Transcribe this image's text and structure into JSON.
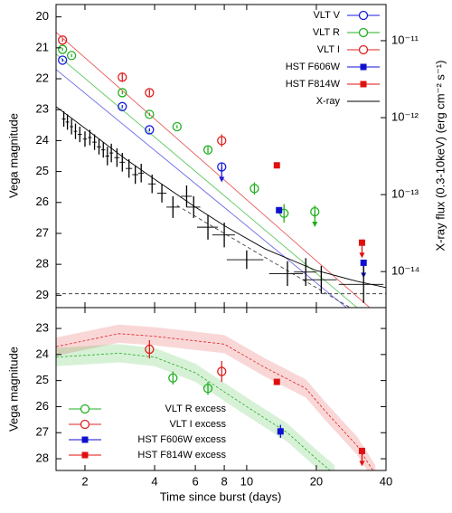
{
  "chart_data": [
    {
      "type": "scatter",
      "ylabel": "Vega magnitude",
      "y2label": "X-ray flux (0.3-10keV) (erg cm⁻² s⁻¹)",
      "xscale": "log",
      "xlim": [
        1.5,
        40
      ],
      "xticks": [
        2,
        4,
        6,
        8,
        10,
        20,
        40
      ],
      "ylim": [
        19.6,
        29.4
      ],
      "y_inverted": true,
      "yticks": [
        20,
        21,
        22,
        23,
        24,
        25,
        26,
        27,
        28,
        29
      ],
      "y2scale": "log",
      "y2lim": [
        3.4e-15,
        2.95e-11
      ],
      "y2ticks": [
        {
          "value": 1e-11,
          "label": "10⁻¹¹"
        },
        {
          "value": 1e-12,
          "label": "10⁻¹²"
        },
        {
          "value": 1e-13,
          "label": "10⁻¹³"
        },
        {
          "value": 1e-14,
          "label": "10⁻¹⁴"
        }
      ],
      "legend": "upper right",
      "series": [
        {
          "name": "VLT V",
          "color": "#1a1ae0",
          "marker": "open-circle",
          "x": [
            1.6,
            2.9,
            3.8,
            7.8
          ],
          "values": [
            21.4,
            22.9,
            23.65,
            24.85
          ],
          "yerr": [
            0.05,
            0.05,
            0.05,
            0.12
          ],
          "arrow": [
            false,
            false,
            false,
            true
          ]
        },
        {
          "name": "VLT R",
          "color": "#20b020",
          "marker": "open-circle",
          "x": [
            1.6,
            1.75,
            2.9,
            3.8,
            5.0,
            6.8,
            10.8,
            14.5,
            19.7
          ],
          "values": [
            21.05,
            21.25,
            22.45,
            23.15,
            23.55,
            24.3,
            25.55,
            26.35,
            26.3
          ],
          "yerr": [
            0.05,
            0.05,
            0.05,
            0.05,
            0.05,
            0.1,
            0.2,
            0.3,
            0.2
          ],
          "arrow": [
            false,
            false,
            false,
            false,
            false,
            false,
            false,
            false,
            true
          ]
        },
        {
          "name": "VLT I",
          "color": "#e02020",
          "marker": "open-circle",
          "x": [
            1.6,
            2.9,
            3.8,
            7.8
          ],
          "values": [
            20.75,
            21.95,
            22.45,
            24.0
          ],
          "yerr": [
            0.05,
            0.15,
            0.1,
            0.2
          ],
          "arrow": [
            false,
            false,
            false,
            false
          ]
        },
        {
          "name": "HST F606W",
          "color": "#1010d0",
          "marker": "square",
          "x": [
            13.8,
            32
          ],
          "values": [
            26.25,
            27.95
          ],
          "yerr": [
            0.1,
            0.1
          ],
          "arrow": [
            false,
            true
          ]
        },
        {
          "name": "HST F814W",
          "color": "#e01010",
          "marker": "square",
          "x": [
            13.5,
            31.5
          ],
          "values": [
            24.8,
            27.3
          ],
          "yerr": [
            0.05,
            0.1
          ],
          "arrow": [
            false,
            true
          ]
        },
        {
          "name": "X-ray",
          "color": "#000000",
          "marker": "cross",
          "legend_line": true,
          "x": [
            1.62,
            1.68,
            1.75,
            1.82,
            1.9,
            2.0,
            2.1,
            2.2,
            2.3,
            2.4,
            2.5,
            2.6,
            2.75,
            2.9,
            3.1,
            3.3,
            3.5,
            3.9,
            4.3,
            4.8,
            5.5,
            5.9,
            6.8,
            8,
            10,
            15,
            18,
            21,
            32
          ],
          "values": [
            23.3,
            23.4,
            23.55,
            23.7,
            23.8,
            23.95,
            23.9,
            24.05,
            24.2,
            24.3,
            24.5,
            24.4,
            24.55,
            24.7,
            24.9,
            25.1,
            25.05,
            25.4,
            25.7,
            26.15,
            25.8,
            26.15,
            26.8,
            27.05,
            27.85,
            28.3,
            28.25,
            28.5,
            28.65
          ],
          "xerr": [
            0.03,
            0.03,
            0.03,
            0.03,
            0.04,
            0.04,
            0.04,
            0.05,
            0.05,
            0.05,
            0.05,
            0.05,
            0.07,
            0.08,
            0.1,
            0.1,
            0.1,
            0.15,
            0.2,
            0.3,
            0.3,
            0.4,
            0.7,
            0.9,
            1.8,
            2.5,
            2,
            3.5,
            7
          ],
          "yerr": [
            0.25,
            0.25,
            0.25,
            0.25,
            0.25,
            0.25,
            0.25,
            0.25,
            0.25,
            0.25,
            0.3,
            0.3,
            0.3,
            0.3,
            0.3,
            0.3,
            0.3,
            0.3,
            0.3,
            0.35,
            0.35,
            0.35,
            0.4,
            0.4,
            0.3,
            0.4,
            0.45,
            0.45,
            0.6
          ],
          "model": {
            "x": [
              1.5,
              2,
              3,
              4,
              6,
              8,
              12,
              20,
              30,
              40
            ],
            "values": [
              22.9,
              23.6,
              24.6,
              25.25,
              26.15,
              26.75,
              27.5,
              28.2,
              28.55,
              28.75
            ]
          }
        }
      ],
      "lines": [
        {
          "color": "#6a6ae8",
          "dash": false,
          "x": [
            1.5,
            27
          ],
          "values": [
            21.7,
            29.4
          ]
        },
        {
          "color": "#60c860",
          "dash": false,
          "x": [
            1.5,
            30
          ],
          "values": [
            21.2,
            29.4
          ]
        },
        {
          "color": "#e86060",
          "dash": false,
          "x": [
            1.5,
            34
          ],
          "values": [
            20.5,
            29.4
          ]
        },
        {
          "color": "#444444",
          "dash": true,
          "x": [
            5,
            28
          ],
          "values": [
            26.1,
            29.4
          ]
        },
        {
          "color": "#444444",
          "dash": true,
          "x": [
            1.5,
            40
          ],
          "values": [
            28.95,
            28.95
          ]
        }
      ]
    },
    {
      "type": "scatter",
      "ylabel": "Vega magnitude",
      "xlabel": "Time since burst (days)",
      "xscale": "log",
      "xlim": [
        1.5,
        40
      ],
      "xticks": [
        2,
        4,
        6,
        8,
        10,
        20,
        40
      ],
      "ylim": [
        22.2,
        28.45
      ],
      "y_inverted": true,
      "yticks": [
        23,
        24,
        25,
        26,
        27,
        28
      ],
      "legend": "lower left",
      "bands": [
        {
          "color": "#e02020",
          "spread": 0.35,
          "x": [
            1.5,
            2.8,
            4,
            8,
            12,
            18,
            22,
            30,
            36
          ],
          "values": [
            23.7,
            23.2,
            23.3,
            23.6,
            24.5,
            25.3,
            26.2,
            27.5,
            28.6
          ]
        },
        {
          "color": "#20b020",
          "spread": 0.35,
          "x": [
            1.5,
            2.8,
            4,
            6,
            10,
            15,
            20,
            24
          ],
          "values": [
            24.1,
            23.95,
            24.1,
            24.7,
            26.0,
            27.0,
            28.0,
            28.6
          ]
        }
      ],
      "series": [
        {
          "name": "VLT R excess",
          "color": "#20b020",
          "marker": "open-circle",
          "x": [
            4.8,
            6.8
          ],
          "values": [
            24.9,
            25.3
          ],
          "yerr": [
            0.25,
            0.25
          ],
          "arrow": [
            false,
            false
          ]
        },
        {
          "name": "VLT I excess",
          "color": "#e02020",
          "marker": "open-circle",
          "x": [
            3.8,
            7.8
          ],
          "values": [
            23.8,
            24.65
          ],
          "yerr": [
            0.35,
            0.4
          ],
          "arrow": [
            false,
            false
          ]
        },
        {
          "name": "HST F606W excess",
          "color": "#1010d0",
          "marker": "square",
          "x": [
            14
          ],
          "values": [
            26.95
          ],
          "yerr": [
            0.25
          ],
          "arrow": [
            false
          ]
        },
        {
          "name": "HST F814W excess",
          "color": "#e01010",
          "marker": "square",
          "x": [
            13.5,
            31.5
          ],
          "values": [
            25.05,
            27.7
          ],
          "yerr": [
            0.05,
            0.1
          ],
          "arrow": [
            false,
            true
          ]
        }
      ]
    }
  ]
}
